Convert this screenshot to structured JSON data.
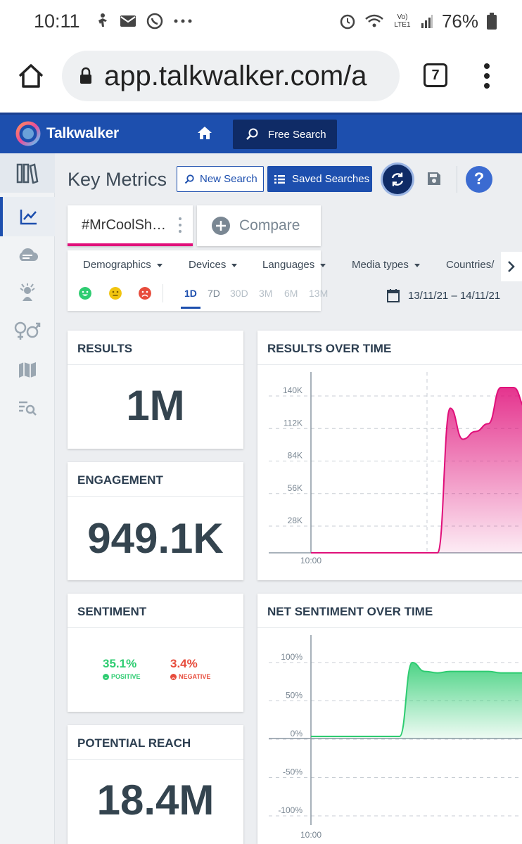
{
  "status_bar": {
    "time": "10:11",
    "battery": "76%",
    "network": "Vo) LTE1"
  },
  "browser": {
    "url": "app.talkwalker.com/a",
    "tab_count": "7"
  },
  "app": {
    "brand": "Talkwalker",
    "free_search": "Free Search"
  },
  "sidebar": {
    "items": [
      "library",
      "trend-chart",
      "cloud",
      "influencer",
      "gender",
      "map",
      "list-search"
    ]
  },
  "toolbar": {
    "title": "Key Metrics",
    "new_search": "New Search",
    "saved_searches": "Saved Searches",
    "help": "?"
  },
  "query": {
    "tab_label": "#MrCoolSh…",
    "compare": "Compare"
  },
  "filters": {
    "items": [
      "Demographics",
      "Devices",
      "Languages",
      "Media types",
      "Countries/"
    ],
    "ranges": [
      "1D",
      "7D",
      "30D",
      "3M",
      "6M",
      "13M"
    ],
    "active_range": "1D",
    "date_range": "13/11/21 – 14/11/21"
  },
  "cards": {
    "results": {
      "title": "RESULTS",
      "value": "1M"
    },
    "engagement": {
      "title": "ENGAGEMENT",
      "value": "949.1K"
    },
    "sentiment": {
      "title": "SENTIMENT",
      "positive_value": "35.1%",
      "positive_label": "POSITIVE",
      "negative_value": "3.4%",
      "negative_label": "NEGATIVE"
    },
    "reach": {
      "title": "POTENTIAL REACH",
      "value": "18.4M"
    },
    "results_over_time": {
      "title": "RESULTS OVER TIME"
    },
    "net_sentiment": {
      "title": "NET SENTIMENT OVER TIME"
    }
  },
  "colors": {
    "brand": "#1d4fae",
    "accent": "#e0107a",
    "positive": "#2ecc71",
    "negative": "#e74c3c",
    "neutral": "#f1c40f"
  },
  "chart_data": [
    {
      "type": "area",
      "title": "RESULTS OVER TIME",
      "y_ticks": [
        "140K",
        "112K",
        "84K",
        "56K",
        "28K"
      ],
      "x_ticks": [
        "10:00"
      ],
      "ylim": [
        0,
        140000
      ],
      "x": [
        0,
        1,
        2,
        3,
        4,
        5,
        6,
        7,
        8,
        9,
        10,
        11,
        12,
        13,
        14,
        15,
        16,
        17,
        18
      ],
      "values": [
        0,
        0,
        0,
        0,
        0,
        0,
        0,
        0,
        0,
        0,
        0,
        112000,
        88000,
        94000,
        100000,
        128000,
        128000,
        112000,
        70000
      ],
      "color": "#e0107a"
    },
    {
      "type": "area",
      "title": "NET SENTIMENT OVER TIME",
      "y_ticks": [
        "100%",
        "50%",
        "0%",
        "-50%",
        "-100%"
      ],
      "x_ticks": [
        "10:00"
      ],
      "ylim": [
        -100,
        100
      ],
      "x": [
        0,
        1,
        2,
        3,
        4,
        5,
        6,
        7,
        8,
        9,
        10,
        11,
        12,
        13,
        14,
        15,
        16,
        17,
        18
      ],
      "values": [
        0,
        0,
        0,
        0,
        0,
        0,
        0,
        0,
        100,
        88,
        86,
        88,
        88,
        88,
        88,
        86,
        86,
        86,
        86
      ],
      "color": "#2ecc71"
    }
  ]
}
